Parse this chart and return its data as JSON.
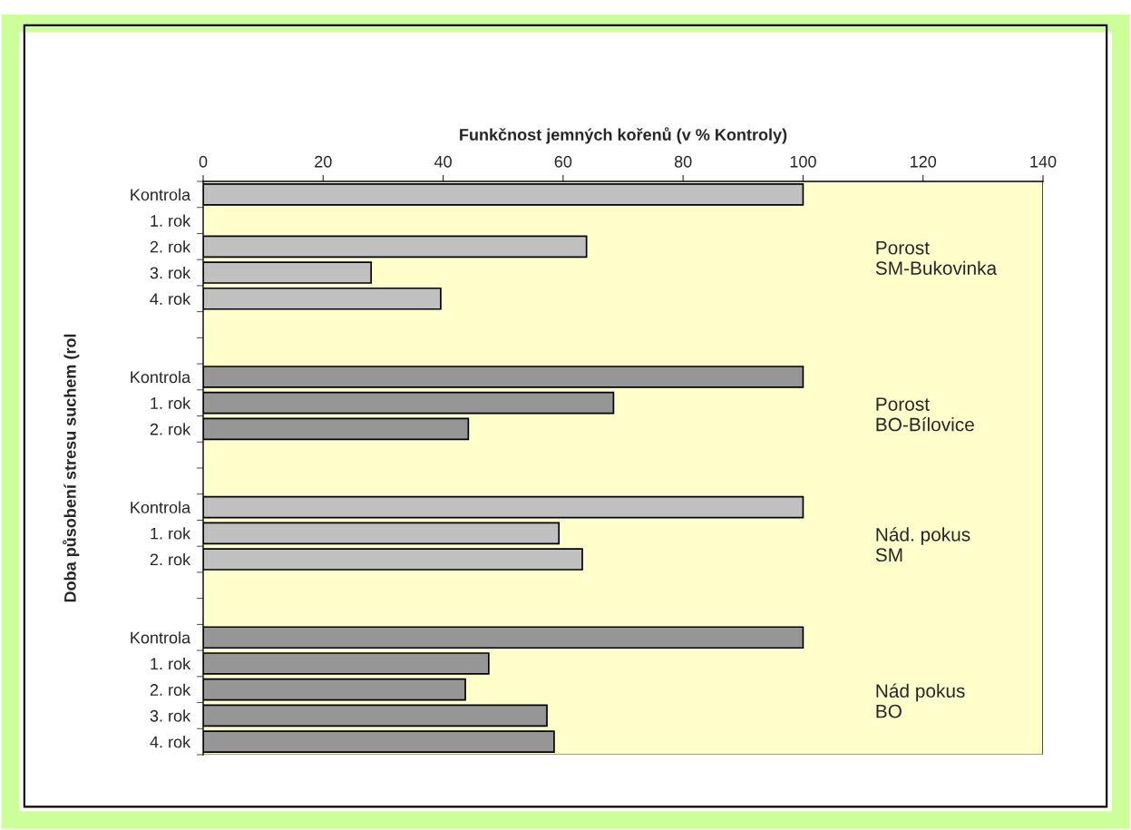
{
  "chart_data": {
    "type": "bar",
    "orientation": "horizontal",
    "xlabel": "Funkčnost jemných kořenů (v % Kontroly)",
    "ylabel": "Doba působení stresu suchem (rol",
    "categories": [
      "Kontrola",
      "1. rok",
      "2. rok",
      "3. rok",
      "4. rok",
      null,
      null,
      "Kontrola",
      "1. rok",
      "2. rok",
      null,
      null,
      "Kontrola",
      "1. rok",
      "2. rok",
      null,
      null,
      "Kontrola",
      "1. rok",
      "2. rok",
      "3. rok",
      "4. rok"
    ],
    "values": [
      100,
      null,
      63.9,
      28.0,
      39.6,
      null,
      null,
      100,
      68.4,
      44.2,
      null,
      null,
      100,
      59.3,
      63.2,
      null,
      null,
      100,
      47.6,
      43.7,
      57.3,
      58.5
    ],
    "colors": [
      "#c0c0c0",
      "#c0c0c0",
      "#c0c0c0",
      "#c0c0c0",
      "#c0c0c0",
      "#c0c0c0",
      "#c0c0c0",
      "#969696",
      "#969696",
      "#969696",
      "#969696",
      "#969696",
      "#c0c0c0",
      "#c0c0c0",
      "#c0c0c0",
      "#c0c0c0",
      "#c0c0c0",
      "#969696",
      "#969696",
      "#969696",
      "#969696",
      "#969696"
    ],
    "xlim": [
      0,
      140
    ],
    "xticks": [
      0,
      20,
      40,
      60,
      80,
      100,
      120,
      140
    ],
    "grid": false,
    "legend": false,
    "annotations": [
      "Porost\nSM-Bukovinka",
      "Porost\nBO-Bílovice",
      "Nád. pokus\nSM",
      "Nád pokus\nBO"
    ]
  }
}
